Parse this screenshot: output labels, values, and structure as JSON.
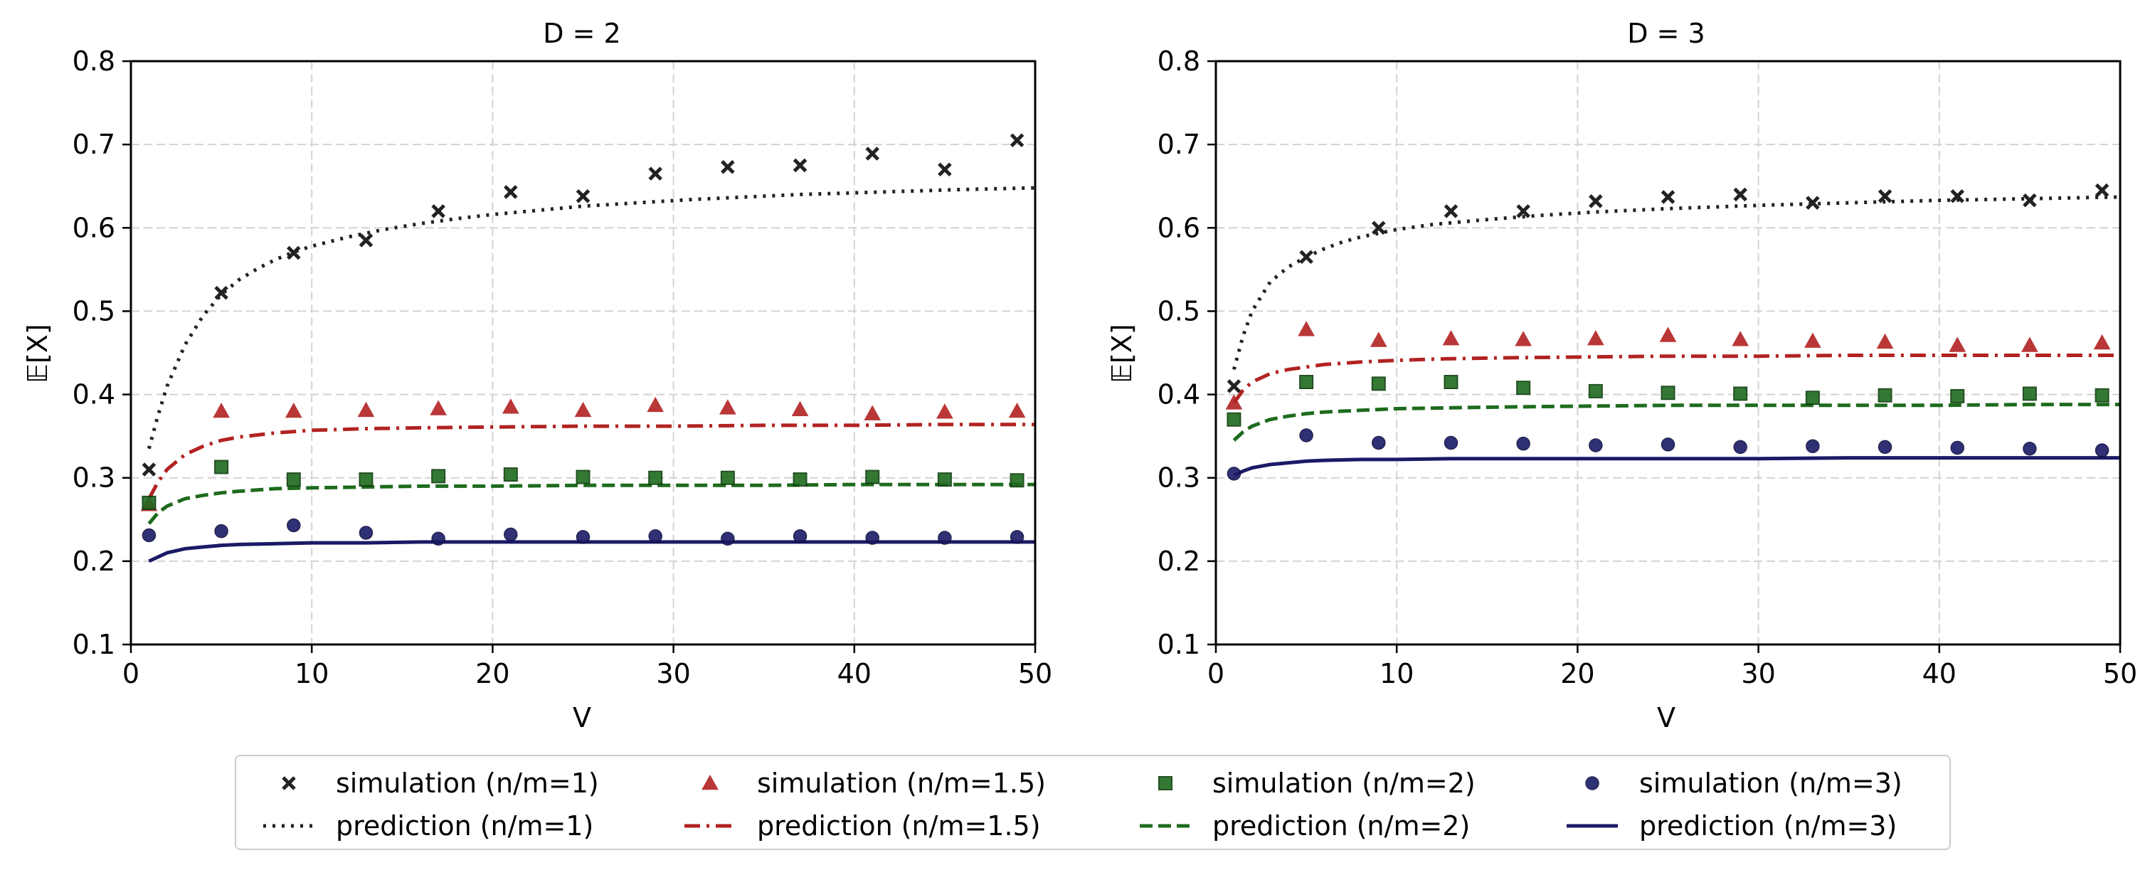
{
  "colors": {
    "n1": "#222222",
    "n15": "#b22222",
    "n2": "#1e6b1e",
    "n3": "#1a1a66"
  },
  "chart_data": [
    {
      "type": "scatter",
      "title": "D = 2",
      "xlabel": "V",
      "ylabel": "𝔼[X]",
      "xlim": [
        0,
        50
      ],
      "ylim": [
        0.1,
        0.8
      ],
      "xticks": [
        0,
        10,
        20,
        30,
        40,
        50
      ],
      "yticks": [
        0.1,
        0.2,
        0.3,
        0.4,
        0.5,
        0.6,
        0.7,
        0.8
      ],
      "grid": true,
      "sim_x": [
        1,
        5,
        9,
        13,
        17,
        21,
        25,
        29,
        33,
        37,
        41,
        45,
        49
      ],
      "series": [
        {
          "name": "simulation (n/m=1)",
          "kind": "scatter",
          "marker": "x",
          "color_key": "n1",
          "y": [
            0.31,
            0.522,
            0.57,
            0.585,
            0.62,
            0.643,
            0.638,
            0.665,
            0.673,
            0.675,
            0.689,
            0.67,
            0.705
          ]
        },
        {
          "name": "simulation (n/m=1.5)",
          "kind": "scatter",
          "marker": "triangle",
          "color_key": "n15",
          "y": [
            0.268,
            0.38,
            0.38,
            0.381,
            0.383,
            0.385,
            0.381,
            0.387,
            0.384,
            0.382,
            0.377,
            0.379,
            0.38
          ]
        },
        {
          "name": "simulation (n/m=2)",
          "kind": "scatter",
          "marker": "square",
          "color_key": "n2",
          "y": [
            0.27,
            0.313,
            0.298,
            0.298,
            0.302,
            0.304,
            0.301,
            0.3,
            0.3,
            0.298,
            0.301,
            0.298,
            0.297
          ]
        },
        {
          "name": "simulation (n/m=3)",
          "kind": "scatter",
          "marker": "circle",
          "color_key": "n3",
          "y": [
            0.231,
            0.236,
            0.243,
            0.234,
            0.227,
            0.232,
            0.229,
            0.23,
            0.227,
            0.23,
            0.228,
            0.228,
            0.229
          ]
        },
        {
          "name": "prediction (n/m=1)",
          "kind": "line",
          "dash": "dotted",
          "color_key": "n1",
          "x": [
            1,
            1.5,
            2,
            3,
            4,
            5,
            6,
            7,
            8,
            9,
            10,
            12,
            14,
            16,
            18,
            20,
            22,
            25,
            28,
            31,
            34,
            37,
            40,
            43,
            46,
            50
          ],
          "y": [
            0.335,
            0.375,
            0.41,
            0.46,
            0.495,
            0.52,
            0.538,
            0.551,
            0.562,
            0.571,
            0.578,
            0.589,
            0.598,
            0.605,
            0.611,
            0.616,
            0.62,
            0.626,
            0.63,
            0.634,
            0.637,
            0.64,
            0.642,
            0.644,
            0.646,
            0.648
          ]
        },
        {
          "name": "prediction (n/m=1.5)",
          "kind": "line",
          "dash": "dashdot",
          "color_key": "n15",
          "x": [
            1,
            1.5,
            2,
            3,
            4,
            5,
            6,
            8,
            10,
            13,
            16,
            20,
            25,
            30,
            35,
            40,
            45,
            50
          ],
          "y": [
            0.275,
            0.295,
            0.31,
            0.328,
            0.338,
            0.345,
            0.349,
            0.354,
            0.357,
            0.359,
            0.36,
            0.361,
            0.362,
            0.362,
            0.363,
            0.363,
            0.364,
            0.364
          ]
        },
        {
          "name": "prediction (n/m=2)",
          "kind": "line",
          "dash": "dashed",
          "color_key": "n2",
          "x": [
            1,
            1.5,
            2,
            3,
            4,
            5,
            6,
            8,
            10,
            13,
            16,
            20,
            25,
            30,
            35,
            40,
            45,
            50
          ],
          "y": [
            0.245,
            0.258,
            0.266,
            0.275,
            0.279,
            0.282,
            0.284,
            0.287,
            0.288,
            0.289,
            0.29,
            0.29,
            0.291,
            0.291,
            0.291,
            0.292,
            0.292,
            0.292
          ]
        },
        {
          "name": "prediction (n/m=3)",
          "kind": "line",
          "dash": "solid",
          "color_key": "n3",
          "x": [
            1,
            1.5,
            2,
            3,
            4,
            5,
            6,
            8,
            10,
            13,
            16,
            20,
            25,
            30,
            35,
            40,
            45,
            50
          ],
          "y": [
            0.2,
            0.205,
            0.21,
            0.215,
            0.217,
            0.219,
            0.22,
            0.221,
            0.222,
            0.222,
            0.223,
            0.223,
            0.223,
            0.223,
            0.223,
            0.223,
            0.223,
            0.223
          ]
        }
      ]
    },
    {
      "type": "scatter",
      "title": "D = 3",
      "xlabel": "V",
      "ylabel": "𝔼[X]",
      "xlim": [
        0,
        50
      ],
      "ylim": [
        0.1,
        0.8
      ],
      "xticks": [
        0,
        10,
        20,
        30,
        40,
        50
      ],
      "yticks": [
        0.1,
        0.2,
        0.3,
        0.4,
        0.5,
        0.6,
        0.7,
        0.8
      ],
      "grid": true,
      "sim_x": [
        1,
        5,
        9,
        13,
        17,
        21,
        25,
        29,
        33,
        37,
        41,
        45,
        49
      ],
      "series": [
        {
          "name": "simulation (n/m=1)",
          "kind": "scatter",
          "marker": "x",
          "color_key": "n1",
          "y": [
            0.41,
            0.565,
            0.6,
            0.62,
            0.62,
            0.632,
            0.637,
            0.64,
            0.63,
            0.638,
            0.638,
            0.633,
            0.645
          ]
        },
        {
          "name": "simulation (n/m=1.5)",
          "kind": "scatter",
          "marker": "triangle",
          "color_key": "n15",
          "y": [
            0.39,
            0.478,
            0.465,
            0.467,
            0.466,
            0.467,
            0.471,
            0.466,
            0.464,
            0.463,
            0.459,
            0.459,
            0.462
          ]
        },
        {
          "name": "simulation (n/m=2)",
          "kind": "scatter",
          "marker": "square",
          "color_key": "n2",
          "y": [
            0.37,
            0.415,
            0.413,
            0.415,
            0.408,
            0.404,
            0.402,
            0.401,
            0.396,
            0.399,
            0.398,
            0.401,
            0.399
          ]
        },
        {
          "name": "simulation (n/m=3)",
          "kind": "scatter",
          "marker": "circle",
          "color_key": "n3",
          "y": [
            0.305,
            0.351,
            0.342,
            0.342,
            0.341,
            0.339,
            0.34,
            0.337,
            0.338,
            0.337,
            0.336,
            0.335,
            0.333
          ]
        },
        {
          "name": "prediction (n/m=1)",
          "kind": "line",
          "dash": "dotted",
          "color_key": "n1",
          "x": [
            1,
            1.5,
            2,
            3,
            4,
            5,
            6,
            7,
            8,
            10,
            12,
            15,
            18,
            21,
            25,
            30,
            35,
            40,
            45,
            50
          ],
          "y": [
            0.43,
            0.47,
            0.5,
            0.535,
            0.553,
            0.565,
            0.575,
            0.583,
            0.589,
            0.598,
            0.604,
            0.61,
            0.615,
            0.619,
            0.623,
            0.627,
            0.63,
            0.633,
            0.635,
            0.637
          ]
        },
        {
          "name": "prediction (n/m=1.5)",
          "kind": "line",
          "dash": "dashdot",
          "color_key": "n15",
          "x": [
            1,
            1.5,
            2,
            3,
            4,
            5,
            6,
            8,
            10,
            13,
            16,
            20,
            25,
            30,
            35,
            40,
            45,
            50
          ],
          "y": [
            0.39,
            0.405,
            0.415,
            0.425,
            0.43,
            0.433,
            0.436,
            0.439,
            0.441,
            0.443,
            0.444,
            0.445,
            0.446,
            0.446,
            0.447,
            0.447,
            0.447,
            0.447
          ]
        },
        {
          "name": "prediction (n/m=2)",
          "kind": "line",
          "dash": "dashed",
          "color_key": "n2",
          "x": [
            1,
            1.5,
            2,
            3,
            4,
            5,
            6,
            8,
            10,
            13,
            16,
            20,
            25,
            30,
            35,
            40,
            45,
            50
          ],
          "y": [
            0.345,
            0.355,
            0.362,
            0.37,
            0.374,
            0.377,
            0.379,
            0.381,
            0.383,
            0.384,
            0.385,
            0.386,
            0.387,
            0.387,
            0.387,
            0.387,
            0.388,
            0.388
          ]
        },
        {
          "name": "prediction (n/m=3)",
          "kind": "line",
          "dash": "solid",
          "color_key": "n3",
          "x": [
            1,
            1.5,
            2,
            3,
            4,
            5,
            6,
            8,
            10,
            13,
            16,
            20,
            25,
            30,
            35,
            40,
            45,
            50
          ],
          "y": [
            0.303,
            0.308,
            0.312,
            0.316,
            0.318,
            0.32,
            0.321,
            0.322,
            0.322,
            0.323,
            0.323,
            0.323,
            0.323,
            0.323,
            0.324,
            0.324,
            0.324,
            0.324
          ]
        }
      ]
    }
  ],
  "legend": {
    "placement": "bottom-center",
    "entries": [
      {
        "label": "simulation (n/m=1)",
        "kind": "scatter",
        "marker": "x",
        "color_key": "n1"
      },
      {
        "label": "simulation (n/m=1.5)",
        "kind": "scatter",
        "marker": "triangle",
        "color_key": "n15"
      },
      {
        "label": "simulation (n/m=2)",
        "kind": "scatter",
        "marker": "square",
        "color_key": "n2"
      },
      {
        "label": "simulation (n/m=3)",
        "kind": "scatter",
        "marker": "circle",
        "color_key": "n3"
      },
      {
        "label": "prediction (n/m=1)",
        "kind": "line",
        "dash": "dotted",
        "color_key": "n1"
      },
      {
        "label": "prediction (n/m=1.5)",
        "kind": "line",
        "dash": "dashdot",
        "color_key": "n15"
      },
      {
        "label": "prediction (n/m=2)",
        "kind": "line",
        "dash": "dashed",
        "color_key": "n2"
      },
      {
        "label": "prediction (n/m=3)",
        "kind": "line",
        "dash": "solid",
        "color_key": "n3"
      }
    ]
  }
}
